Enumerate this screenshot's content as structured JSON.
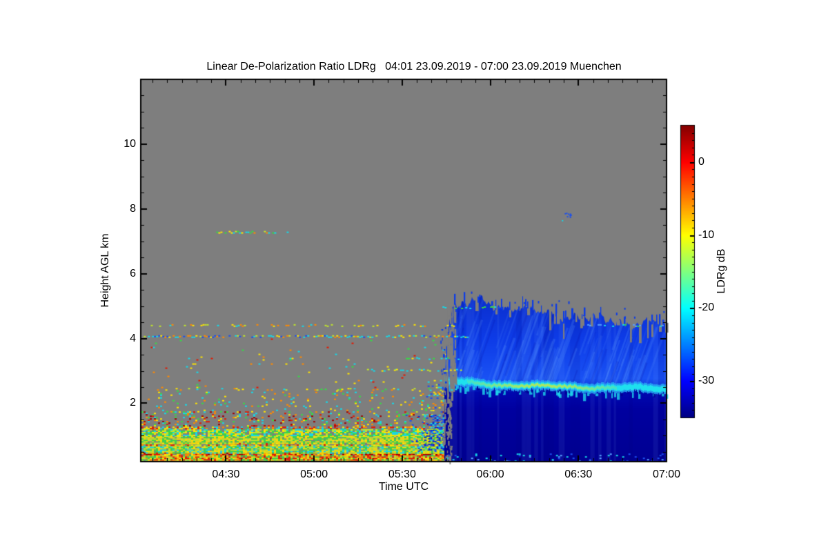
{
  "page": {
    "background": "#ffffff"
  },
  "chart_data": {
    "type": "heatmap",
    "title": "Linear De-Polarization Ratio LDRg   04:01 23.09.2019 - 07:00 23.09.2019 Muenchen",
    "xlabel": "Time UTC",
    "ylabel": "Height AGL km",
    "x_axis": {
      "start_minutes": 241,
      "end_minutes": 420,
      "tick_labels": [
        "04:30",
        "05:00",
        "05:30",
        "06:00",
        "06:30",
        "07:00"
      ],
      "tick_minutes": [
        270,
        300,
        330,
        360,
        390,
        420
      ],
      "minor_step_minutes": 5
    },
    "y_axis": {
      "min_km": 0.2,
      "max_km": 12.0,
      "tick_labels": [
        "2",
        "4",
        "6",
        "8",
        "10"
      ],
      "tick_km": [
        2,
        4,
        6,
        8,
        10
      ],
      "minor_step_km": 0.5
    },
    "colorbar": {
      "label": "LDRg dB",
      "min_db": -35,
      "max_db": 5,
      "tick_labels": [
        "0",
        "-10",
        "-20",
        "-30"
      ],
      "tick_db": [
        0,
        -10,
        -20,
        -30
      ],
      "minor_step_db": 1,
      "colormap": "jet"
    },
    "no_data_color": "#7e7e7e",
    "grid": false,
    "features": {
      "palette": {
        "darkred": "#a00000",
        "red": "#e41800",
        "orange": "#ff8a00",
        "yellow": "#ffe400",
        "yellowgreen": "#c0e42c",
        "green": "#38d848",
        "cyan": "#16d8e8",
        "blue": "#1c50ee",
        "cobalt": "#0c2cd0",
        "navy": "#0000a0",
        "lightblue": "#58a0ff"
      },
      "boundary_layer": {
        "time_minutes": [
          241,
          346
        ],
        "fade_end_minutes": 352,
        "layers": [
          {
            "km": [
              0.21,
              0.4
            ],
            "density": 0.97,
            "palette": [
              "yellow",
              "yellowgreen",
              "green",
              "orange",
              "red"
            ]
          },
          {
            "km": [
              0.4,
              0.48
            ],
            "density": 0.8,
            "palette": [
              "red",
              "darkred",
              "orange",
              "yellow"
            ]
          },
          {
            "km": [
              0.48,
              0.7
            ],
            "density": 0.95,
            "palette": [
              "yellow",
              "yellowgreen",
              "green",
              "cyan"
            ]
          },
          {
            "km": [
              0.7,
              0.77
            ],
            "density": 0.55,
            "palette": [
              "orange",
              "red",
              "yellow",
              "yellowgreen"
            ]
          },
          {
            "km": [
              0.77,
              1.0
            ],
            "density": 0.9,
            "palette": [
              "yellow",
              "yellowgreen",
              "green"
            ]
          },
          {
            "km": [
              1.0,
              1.2
            ],
            "density": 0.75,
            "palette": [
              "cyan",
              "green",
              "yellowgreen",
              "yellow"
            ]
          },
          {
            "km": [
              1.2,
              1.28
            ],
            "density": 0.4,
            "palette": [
              "red",
              "orange",
              "yellow",
              "cyan"
            ]
          },
          {
            "km": [
              1.28,
              1.75
            ],
            "density": 0.16,
            "palette": [
              "orange",
              "yellow",
              "cyan",
              "green",
              "red",
              "darkred"
            ]
          },
          {
            "km": [
              1.75,
              2.4
            ],
            "density": 0.05,
            "palette": [
              "yellow",
              "cyan",
              "orange",
              "green"
            ]
          }
        ]
      },
      "patches": [
        {
          "time": [
            329,
            345
          ],
          "km": [
            0.5,
            1.65
          ],
          "density": 0.55,
          "ramp_in": true,
          "layer": "under",
          "palette": [
            "blue",
            "cobalt",
            "cyan",
            "blue",
            "cobalt"
          ]
        },
        {
          "time": [
            329,
            346
          ],
          "km": [
            1.65,
            2.35
          ],
          "density": 0.3,
          "ramp_in": true,
          "layer": "under",
          "palette": [
            "yellow",
            "cyan",
            "orange",
            "yellowgreen",
            "blue"
          ]
        },
        {
          "time": [
            333,
            346
          ],
          "km": [
            2.35,
            2.72
          ],
          "density": 0.4,
          "ramp_in": true,
          "layer": "under",
          "palette": [
            "cyan",
            "blue",
            "yellowgreen",
            "yellow"
          ]
        },
        {
          "time": [
            243,
            349
          ],
          "km": [
            2.45,
            4.0
          ],
          "density": 0.012,
          "ramp_in": false,
          "layer": "under",
          "palette": [
            "yellow",
            "cyan",
            "orange",
            "red",
            "green"
          ]
        },
        {
          "time": [
            345,
            420
          ],
          "km": [
            0.21,
            0.45
          ],
          "density": 0.1,
          "ramp_in": false,
          "layer": "over",
          "palette": [
            "cyan",
            "lightblue",
            "blue"
          ]
        }
      ],
      "streaks": [
        {
          "km": 2.43,
          "time": [
            243,
            349
          ],
          "density": 0.28,
          "palette": [
            "green",
            "cyan",
            "yellowgreen",
            "orange",
            "yellow"
          ]
        },
        {
          "km": 3.02,
          "time": [
            318,
            350
          ],
          "density": 0.4,
          "palette": [
            "cyan",
            "yellow",
            "yellowgreen"
          ]
        },
        {
          "km": 3.38,
          "time": [
            327,
            349
          ],
          "density": 0.3,
          "palette": [
            "cyan",
            "green"
          ]
        },
        {
          "km": 4.06,
          "time": [
            242,
            352
          ],
          "density": 0.7,
          "palette": [
            "cyan",
            "cyan",
            "yellow",
            "blue",
            "yellowgreen",
            "orange"
          ]
        },
        {
          "km": 4.4,
          "time": [
            243,
            349
          ],
          "density": 0.35,
          "palette": [
            "yellow",
            "orange",
            "cyan",
            "yellowgreen"
          ]
        },
        {
          "km": 4.4,
          "time": [
            393,
            420
          ],
          "density": 0.4,
          "palette": [
            "cyan",
            "green",
            "lightblue"
          ]
        },
        {
          "km": 4.95,
          "time": [
            343,
            363
          ],
          "density": 0.25,
          "palette": [
            "cyan",
            "green",
            "blue"
          ]
        },
        {
          "km": 7.28,
          "time": [
            266,
            291
          ],
          "density": 0.5,
          "palette": [
            "orange",
            "yellow",
            "cyan",
            "green",
            "yellowgreen"
          ]
        }
      ],
      "speck": {
        "time": [
          385.3,
          387.3
        ],
        "km": [
          7.7,
          7.92
        ],
        "color": "blue"
      },
      "cloud": {
        "time_onset_minutes": 344.4,
        "time_end_minutes": 420,
        "top_km_profile": [
          [
            344.4,
            2.4
          ],
          [
            345.2,
            4.2
          ],
          [
            346.5,
            4.85
          ],
          [
            350,
            4.95
          ],
          [
            354,
            5.1
          ],
          [
            358,
            5.2
          ],
          [
            362,
            5.05
          ],
          [
            366,
            4.95
          ],
          [
            371,
            4.85
          ],
          [
            376,
            4.8
          ],
          [
            381,
            4.85
          ],
          [
            386,
            4.7
          ],
          [
            391,
            4.62
          ],
          [
            396,
            4.55
          ],
          [
            401,
            4.62
          ],
          [
            406,
            4.5
          ],
          [
            411,
            4.42
          ],
          [
            416,
            4.47
          ],
          [
            420,
            4.4
          ]
        ],
        "serration_km": 0.28,
        "above_band_db": -29,
        "below_band_db": -33,
        "bright_band": {
          "center_km_profile": [
            [
              344.5,
              2.68
            ],
            [
              352,
              2.63
            ],
            [
              360,
              2.58
            ],
            [
              370,
              2.55
            ],
            [
              380,
              2.52
            ],
            [
              395,
              2.49
            ],
            [
              410,
              2.47
            ],
            [
              420,
              2.44
            ]
          ],
          "halo_km": 0.3,
          "core_time_minutes": [
            352,
            403
          ],
          "halo_db": -20,
          "core_db": -13
        }
      }
    }
  }
}
